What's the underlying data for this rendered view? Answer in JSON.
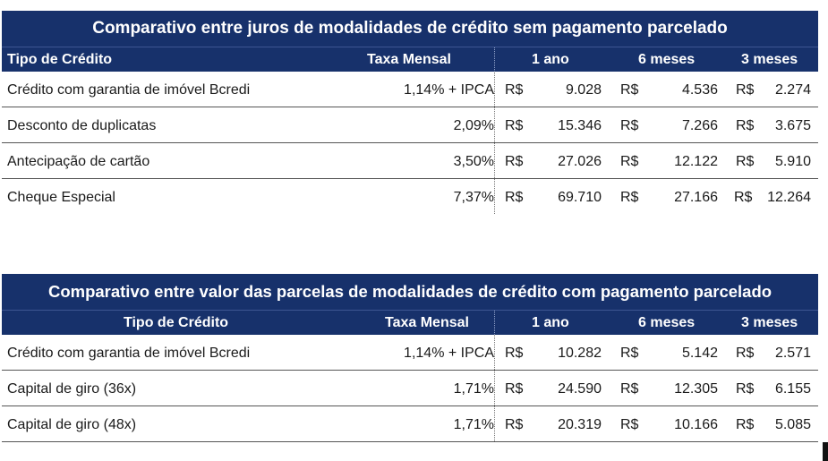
{
  "table1": {
    "title": "Comparativo entre juros de modalidades de crédito sem pagamento parcelado",
    "headers": {
      "type": "Tipo de Crédito",
      "rate": "Taxa Mensal",
      "y1": "1 ano",
      "m6": "6 meses",
      "m3": "3 meses"
    },
    "rows": [
      {
        "type": "Crédito com garantia de imóvel Bcredi",
        "rate": "1,14% + IPCA",
        "cur1": "R$",
        "v1": "9.028",
        "cur2": "R$",
        "v2": "4.536",
        "cur3": "R$",
        "v3": "2.274"
      },
      {
        "type": "Desconto de duplicatas",
        "rate": "2,09%",
        "cur1": "R$",
        "v1": "15.346",
        "cur2": "R$",
        "v2": "7.266",
        "cur3": "R$",
        "v3": "3.675"
      },
      {
        "type": "Antecipação de cartão",
        "rate": "3,50%",
        "cur1": "R$",
        "v1": "27.026",
        "cur2": "R$",
        "v2": "12.122",
        "cur3": "R$",
        "v3": "5.910"
      },
      {
        "type": "Cheque Especial",
        "rate": "7,37%",
        "cur1": "R$",
        "v1": "69.710",
        "cur2": "R$",
        "v2": "27.166",
        "cur3": "R$",
        "v3": "12.264"
      }
    ]
  },
  "table2": {
    "title": "Comparativo entre valor das parcelas de modalidades de crédito com pagamento parcelado",
    "headers": {
      "type": "Tipo de Crédito",
      "rate": "Taxa Mensal",
      "y1": "1 ano",
      "m6": "6 meses",
      "m3": "3 meses"
    },
    "rows": [
      {
        "type": "Crédito com garantia de imóvel Bcredi",
        "rate": "1,14% + IPCA",
        "cur1": "R$",
        "v1": "10.282",
        "cur2": "R$",
        "v2": "5.142",
        "cur3": "R$",
        "v3": "2.571"
      },
      {
        "type": "Capital de giro (36x)",
        "rate": "1,71%",
        "cur1": "R$",
        "v1": "24.590",
        "cur2": "R$",
        "v2": "12.305",
        "cur3": "R$",
        "v3": "6.155"
      },
      {
        "type": "Capital de giro (48x)",
        "rate": "1,71%",
        "cur1": "R$",
        "v1": "20.319",
        "cur2": "R$",
        "v2": "10.166",
        "cur3": "R$",
        "v3": "5.085"
      }
    ]
  }
}
